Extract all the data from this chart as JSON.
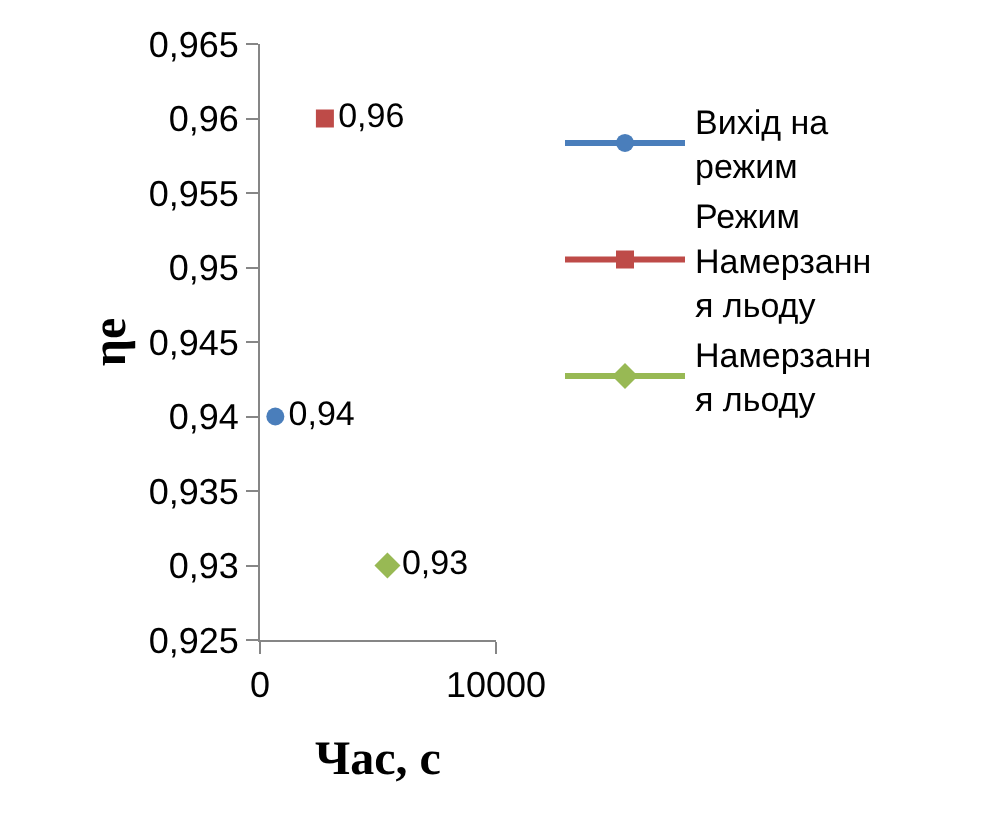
{
  "chart_data": {
    "type": "scatter",
    "xlabel": "Час, с",
    "ylabel": "ηe",
    "series": [
      {
        "name": "Вихід на режим",
        "color": "#4a7ebb",
        "marker": "circle",
        "x": [
          650
        ],
        "values": [
          0.94
        ],
        "value_labels": [
          "0,94"
        ]
      },
      {
        "name": "Режим Намерзання льоду",
        "color": "#be4b48",
        "marker": "square",
        "x": [
          2750
        ],
        "values": [
          0.96
        ],
        "value_labels": [
          "0,96"
        ]
      },
      {
        "name": "Намерзання льоду",
        "color": "#98b954",
        "marker": "diamond",
        "x": [
          5400
        ],
        "values": [
          0.93
        ],
        "value_labels": [
          "0,93"
        ]
      }
    ],
    "xlim": [
      0,
      10000
    ],
    "xticks": [
      0,
      10000
    ],
    "ylim": [
      0.925,
      0.965
    ],
    "yticks": [
      {
        "value": 0.925,
        "label": "0,925"
      },
      {
        "value": 0.93,
        "label": "0,93"
      },
      {
        "value": 0.935,
        "label": "0,935"
      },
      {
        "value": 0.94,
        "label": "0,94"
      },
      {
        "value": 0.945,
        "label": "0,945"
      },
      {
        "value": 0.95,
        "label": "0,95"
      },
      {
        "value": 0.955,
        "label": "0,955"
      },
      {
        "value": 0.96,
        "label": "0,96"
      },
      {
        "value": 0.965,
        "label": "0,965"
      }
    ],
    "legend": "right"
  }
}
